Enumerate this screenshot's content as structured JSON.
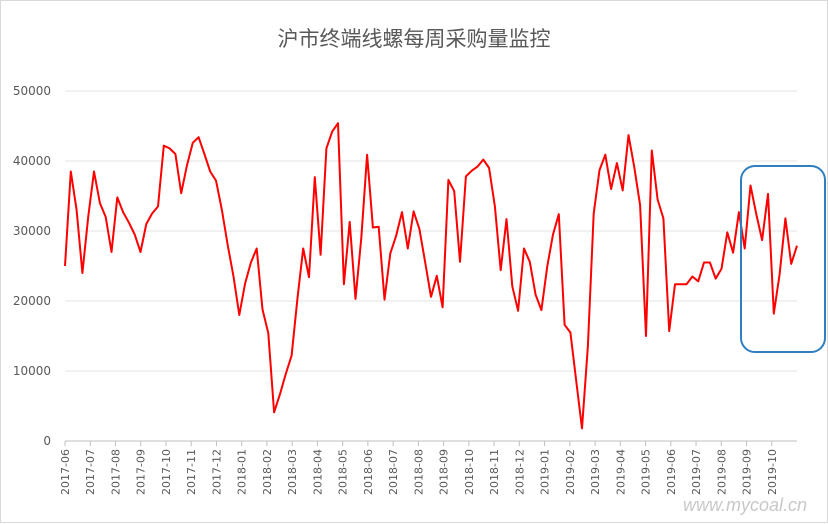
{
  "chart_data": {
    "type": "line",
    "title": "沪市终端线螺每周采购量监控",
    "xlabel": "",
    "ylabel": "",
    "ylim": [
      0,
      50000
    ],
    "yticks": [
      0,
      10000,
      20000,
      30000,
      40000,
      50000
    ],
    "grid": "horizontal",
    "legend": "none",
    "xticks": [
      "2017-06",
      "2017-07",
      "2017-08",
      "2017-09",
      "2017-10",
      "2017-11",
      "2017-12",
      "2018-01",
      "2018-02",
      "2018-03",
      "2018-04",
      "2018-05",
      "2018-06",
      "2018-07",
      "2018-08",
      "2018-09",
      "2018-10",
      "2018-11",
      "2018-12",
      "2019-01",
      "2019-02",
      "2019-03",
      "2019-04",
      "2019-05",
      "2019-06",
      "2019-07",
      "2019-08",
      "2019-09",
      "2019-10"
    ],
    "series": [
      {
        "color": "#ff0000",
        "values": [
          25000,
          38500,
          33000,
          24000,
          32000,
          38500,
          34000,
          32000,
          27000,
          34800,
          32700,
          31200,
          29500,
          27000,
          31000,
          32500,
          33500,
          42200,
          41800,
          41000,
          35400,
          39400,
          42600,
          43400,
          41000,
          38500,
          37200,
          33000,
          28000,
          23500,
          18000,
          22500,
          25500,
          27500,
          18800,
          15400,
          4100,
          6700,
          9600,
          12200,
          20300,
          27500,
          23400,
          37700,
          26600,
          41800,
          44200,
          45400,
          22400,
          31300,
          20300,
          29000,
          40900,
          30500,
          30600,
          20200,
          26800,
          29300,
          32700,
          27500,
          32800,
          30300,
          25500,
          20600,
          23600,
          19100,
          37300,
          35700,
          25600,
          37800,
          38600,
          39200,
          40200,
          39000,
          33500,
          24400,
          31700,
          22100,
          18600,
          27500,
          25600,
          20900,
          18700,
          24900,
          29500,
          32400,
          16600,
          15500,
          8600,
          1800,
          13600,
          32500,
          38700,
          40900,
          36000,
          39700,
          35800,
          43700,
          39100,
          33700,
          15000,
          41500,
          34500,
          31800,
          15700,
          22400,
          22400,
          22400,
          23500,
          22800,
          25500,
          25500,
          23200,
          24600,
          29800,
          26900,
          32700,
          27500,
          36500,
          32400,
          28700,
          35300,
          18200,
          23800,
          31800,
          25300,
          27900
        ]
      }
    ],
    "annotation": {
      "shape": "rounded-rect",
      "color": "#2f7fc0"
    }
  },
  "watermark_text": "www.mycoal.cn"
}
